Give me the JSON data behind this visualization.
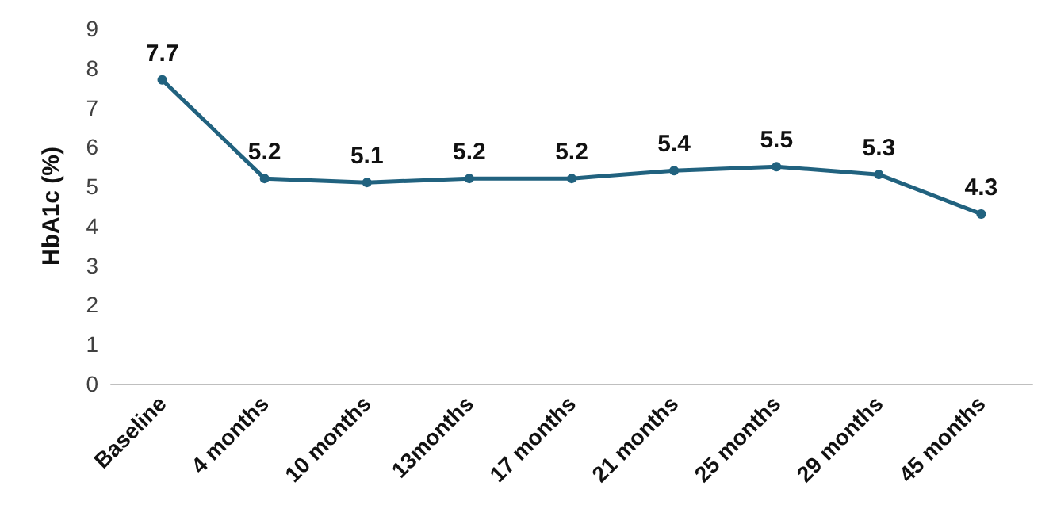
{
  "chart_data": {
    "type": "line",
    "ylabel": "HbA1c (%)",
    "categories": [
      "Baseline",
      "4 months",
      "10 months",
      "13months",
      "17 months",
      "21 months",
      "25 months",
      "29 months",
      "45 months"
    ],
    "series": [
      {
        "color": "#21627f",
        "values": [
          7.7,
          5.2,
          5.1,
          5.2,
          5.2,
          5.4,
          5.5,
          5.3,
          4.3
        ]
      }
    ],
    "ylim": [
      0,
      9
    ],
    "yticks": [
      0,
      1,
      2,
      3,
      4,
      5,
      6,
      7,
      8,
      9
    ],
    "grid": false,
    "marker": "circle",
    "line_style": "solid",
    "data_labels": true
  }
}
